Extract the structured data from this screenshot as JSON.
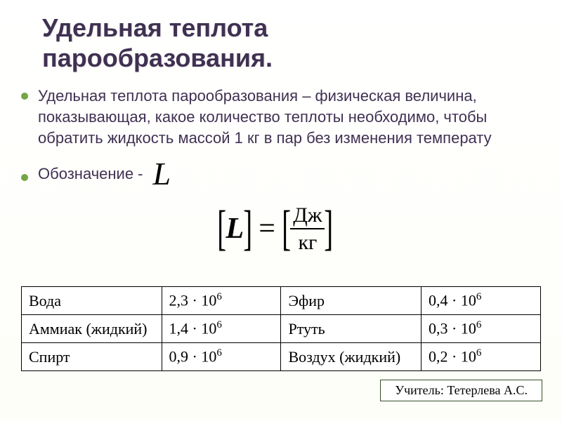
{
  "title_line1": "Удельная теплота",
  "title_line2": "парообразования.",
  "definition": "Удельная теплота парообразования – физическая величина, показывающая, какое количество теплоты необходимо, чтобы обратить жидкость массой 1 кг в пар без изменения температу",
  "designation_label": "Обозначение -",
  "designation_symbol": "L",
  "formula": {
    "lhs_open": "[",
    "lhs_sym": "L",
    "lhs_close": "]",
    "eq": "=",
    "rhs_open": "[",
    "num": "Дж",
    "den": "кг",
    "rhs_close": "]"
  },
  "table": {
    "rows": [
      {
        "a_name": "Вода",
        "a_mant": "2,3",
        "a_exp": "6",
        "b_name": "Эфир",
        "b_mant": "0,4",
        "b_exp": "6"
      },
      {
        "a_name": "Аммиак (жидкий)",
        "a_mant": "1,4",
        "a_exp": "6",
        "b_name": "Ртуть",
        "b_mant": "0,3",
        "b_exp": "6"
      },
      {
        "a_name": "Спирт",
        "a_mant": "0,9",
        "a_exp": "6",
        "b_name": "Воздух (жидкий)",
        "b_mant": "0,2",
        "b_exp": "6"
      }
    ]
  },
  "teacher": "Учитель: Тетерлева А.С.",
  "colors": {
    "title": "#403152",
    "body": "#403152",
    "bullet": "#72a646",
    "teacher_border": "#35502a"
  }
}
